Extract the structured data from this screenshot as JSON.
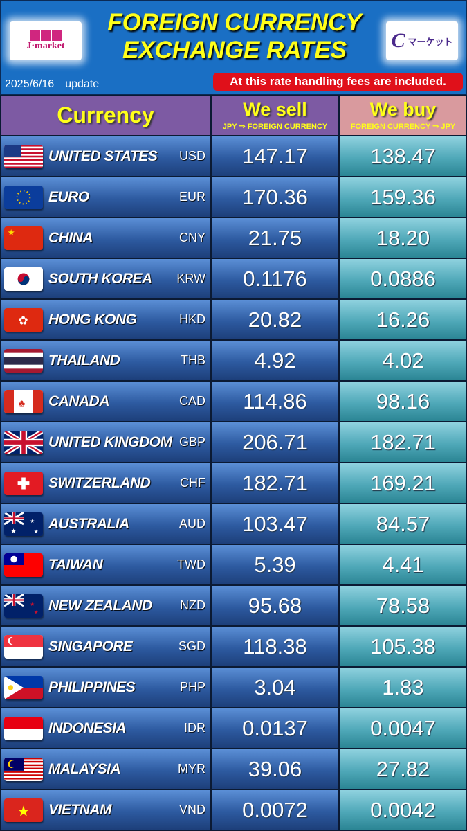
{
  "header": {
    "title_line1": "FOREIGN CURRENCY",
    "title_line2": "EXCHANGE RATES",
    "left_logo": "J·market",
    "right_logo": "マーケット",
    "date": "2025/6/16",
    "update_label": "update",
    "fee_notice": "At this rate handling fees are included."
  },
  "columns": {
    "currency": "Currency",
    "sell": "We sell",
    "sell_sub": "JPY ⇒ FOREIGN CURRENCY",
    "buy": "We buy",
    "buy_sub": "FOREIGN CURRENCY ⇒ JPY"
  },
  "colors": {
    "header_bg": "#1a6fc4",
    "title": "#ffff1a",
    "fee_bg": "#e0101a",
    "col_header": "#7d5aa3",
    "buy_header": "#d99a9e"
  },
  "rows": [
    {
      "country": "UNITED STATES",
      "code": "USD",
      "sell": "147.17",
      "buy": "138.47",
      "flag": "us-flag-icon"
    },
    {
      "country": "EURO",
      "code": "EUR",
      "sell": "170.36",
      "buy": "159.36",
      "flag": "eu-flag-icon"
    },
    {
      "country": "CHINA",
      "code": "CNY",
      "sell": "21.75",
      "buy": "18.20",
      "flag": "cn-flag-icon"
    },
    {
      "country": "SOUTH KOREA",
      "code": "KRW",
      "sell": "0.1176",
      "buy": "0.0886",
      "flag": "kr-flag-icon"
    },
    {
      "country": "HONG KONG",
      "code": "HKD",
      "sell": "20.82",
      "buy": "16.26",
      "flag": "hk-flag-icon"
    },
    {
      "country": "THAILAND",
      "code": "THB",
      "sell": "4.92",
      "buy": "4.02",
      "flag": "th-flag-icon"
    },
    {
      "country": "CANADA",
      "code": "CAD",
      "sell": "114.86",
      "buy": "98.16",
      "flag": "ca-flag-icon"
    },
    {
      "country": "UNITED KINGDOM",
      "code": "GBP",
      "sell": "206.71",
      "buy": "182.71",
      "flag": "gb-flag-icon"
    },
    {
      "country": "SWITZERLAND",
      "code": "CHF",
      "sell": "182.71",
      "buy": "169.21",
      "flag": "ch-flag-icon"
    },
    {
      "country": "AUSTRALIA",
      "code": "AUD",
      "sell": "103.47",
      "buy": "84.57",
      "flag": "au-flag-icon"
    },
    {
      "country": "TAIWAN",
      "code": "TWD",
      "sell": "5.39",
      "buy": "4.41",
      "flag": "tw-flag-icon"
    },
    {
      "country": "NEW ZEALAND",
      "code": "NZD",
      "sell": "95.68",
      "buy": "78.58",
      "flag": "nz-flag-icon"
    },
    {
      "country": "SINGAPORE",
      "code": "SGD",
      "sell": "118.38",
      "buy": "105.38",
      "flag": "sg-flag-icon"
    },
    {
      "country": "PHILIPPINES",
      "code": "PHP",
      "sell": "3.04",
      "buy": "1.83",
      "flag": "ph-flag-icon"
    },
    {
      "country": "INDONESIA",
      "code": "IDR",
      "sell": "0.0137",
      "buy": "0.0047",
      "flag": "id-flag-icon"
    },
    {
      "country": "MALAYSIA",
      "code": "MYR",
      "sell": "39.06",
      "buy": "27.82",
      "flag": "my-flag-icon"
    },
    {
      "country": "VIETNAM",
      "code": "VND",
      "sell": "0.0072",
      "buy": "0.0042",
      "flag": "vn-flag-icon"
    }
  ]
}
